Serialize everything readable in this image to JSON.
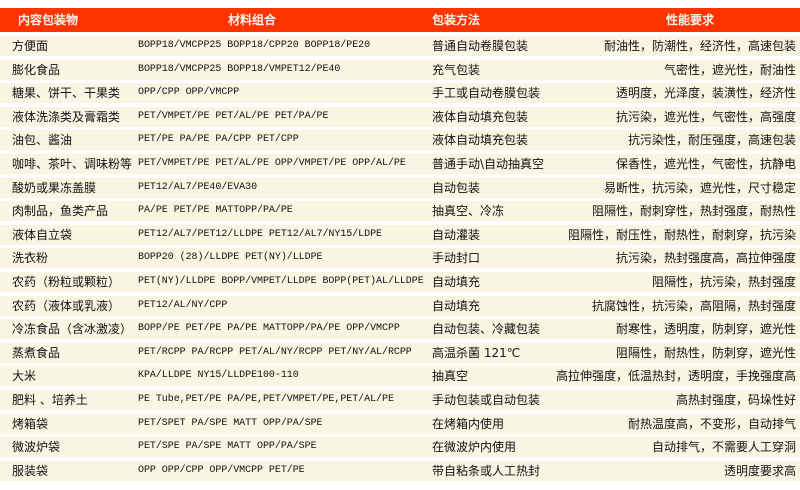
{
  "header": {
    "col1": "内容包装物",
    "col2": "材料组合",
    "col3": "包装方法",
    "col4": "性能要求"
  },
  "theme": {
    "header_bg": "#ff3300",
    "row_bg": "#f8f5e2"
  },
  "rows": [
    {
      "item": "方便面",
      "materials": "BOPP18/VMCPP25  BOPP18/CPP20  BOPP18/PE20",
      "method": "普通自动卷膜包装",
      "requirements": "耐油性，防潮性，经济性，高速包装"
    },
    {
      "item": "膨化食品",
      "materials": "BOPP18/VMCPP25  BOPP18/VMPET12/PE40",
      "method": "充气包装",
      "requirements": "气密性，遮光性，耐油性"
    },
    {
      "item": "糖果、饼干、干果类",
      "materials": "OPP/CPP OPP/VMCPP",
      "method": "手工或自动卷膜包装",
      "requirements": "透明度，光泽度，装潢性，经济性"
    },
    {
      "item": "液体洗涤类及膏霜类",
      "materials": "PET/VMPET/PE PET/AL/PE  PET/PA/PE",
      "method": "液体自动填充包装",
      "requirements": "抗污染，遮光性，气密性，高强度"
    },
    {
      "item": "油包、酱油",
      "materials": "PET/PE  PA/PE PA/CPP PET/CPP",
      "method": "液体自动填充包装",
      "requirements": "抗污染性，耐压强度，高速包装"
    },
    {
      "item": "咖啡、茶叶、调味粉等",
      "materials": "PET/VMPET/PE PET/AL/PE OPP/VMPET/PE OPP/AL/PE",
      "method": "普通手动\\自动抽真空",
      "requirements": "保香性，遮光性，气密性，抗静电"
    },
    {
      "item": "酸奶或果冻盖膜",
      "materials": "PET12/AL7/PE40/EVA30",
      "method": "自动包装",
      "requirements": "易断性，抗污染，遮光性，尺寸稳定"
    },
    {
      "item": "肉制品，鱼类产品",
      "materials": "PA/PE PET/PE MATTOPP/PA/PE",
      "method": "抽真空、冷冻",
      "requirements": "阻隔性，耐刺穿性，热封强度，耐热性"
    },
    {
      "item": "液体自立袋",
      "materials": "PET12/AL7/PET12/LLDPE PET12/AL7/NY15/LDPE",
      "method": "自动灌装",
      "requirements": "阻隔性，耐压性，耐热性，耐刺穿，抗污染"
    },
    {
      "item": "洗衣粉",
      "materials": "BOPP20 (28)/LLDPE PET(NY)/LLDPE",
      "method": "手动封口",
      "requirements": "抗污染，热封强度高，高拉伸强度"
    },
    {
      "item": "农药（粉粒或颗粒）",
      "materials": "PET(NY)/LLDPE BOPP/VMPET/LLDPE BOPP(PET)AL/LLDPE",
      "method": "自动填充",
      "requirements": "阻隔性，抗污染，热封强度"
    },
    {
      "item": "农药（液体或乳液）",
      "materials": "PET12/AL/NY/CPP",
      "method": "自动填充",
      "requirements": "抗腐蚀性，抗污染，高阻隔，热封强度"
    },
    {
      "item": "冷冻食品（含冰激凌）",
      "materials": "BOPP/PE PET/PE PA/PE MATTOPP/PA/PE OPP/VMCPP",
      "method": "自动包装、冷藏包装",
      "requirements": "耐寒性，透明度，防刺穿，遮光性"
    },
    {
      "item": "蒸煮食品",
      "materials": "PET/RCPP PA/RCPP PET/AL/NY/RCPP PET/NY/AL/RCPP",
      "method": "高温杀菌 121℃",
      "requirements": "阻隔性，耐热性，防刺穿，遮光性"
    },
    {
      "item": "大米",
      "materials": "KPA/LLDPE NY15/LLDPE100-110",
      "method": "抽真空",
      "requirements": "高拉伸强度，低温热封，透明度，手挽强度高"
    },
    {
      "item": "肥料 、培养土",
      "materials": "PE Tube,PET/PE  PA/PE,PET/VMPET/PE,PET/AL/PE",
      "method": "手动包装或自动包装",
      "requirements": "高热封强度，码垛性好"
    },
    {
      "item": "烤箱袋",
      "materials": "PET/SPET PA/SPE MATT OPP/PA/SPE",
      "method": "在烤箱内使用",
      "requirements": "耐热温度高，不变形，自动排气"
    },
    {
      "item": "微波炉袋",
      "materials": "PET/SPE PA/SPE MATT OPP/PA/SPE",
      "method": "在微波炉内使用",
      "requirements": "自动排气，不需要人工穿洞"
    },
    {
      "item": "服装袋",
      "materials": "OPP  OPP/CPP OPP/VMCPP PET/PE",
      "method": "带自粘条或人工热封",
      "requirements": "透明度要求高"
    }
  ]
}
